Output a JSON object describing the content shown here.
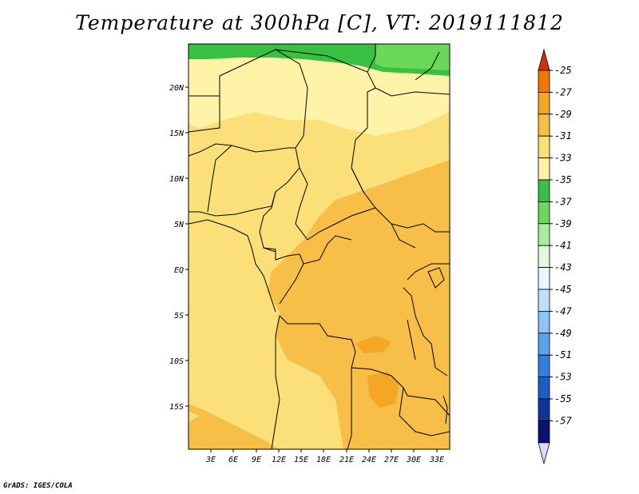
{
  "title": "Temperature at 300hPa [C], VT: 2019111812",
  "credit": "GrADS: IGES/COLA",
  "map": {
    "lat_labels": [
      "20N",
      "15N",
      "10N",
      "5N",
      "EQ",
      "5S",
      "10S",
      "15S"
    ],
    "lon_labels": [
      "3E",
      "6E",
      "9E",
      "12E",
      "15E",
      "18E",
      "21E",
      "24E",
      "27E",
      "30E",
      "33E"
    ]
  },
  "colorbar": {
    "labels": [
      "-25",
      "-27",
      "-29",
      "-31",
      "-33",
      "-35",
      "-37",
      "-39",
      "-41",
      "-43",
      "-45",
      "-47",
      "-49",
      "-51",
      "-53",
      "-55",
      "-57"
    ],
    "colors": [
      "#d73000",
      "#f07800",
      "#f5a623",
      "#f7be48",
      "#fbe07a",
      "#fff3a8",
      "#38c040",
      "#6ad858",
      "#a8eca0",
      "#e0fae0",
      "#e8f6ff",
      "#bfe0fa",
      "#8cc4f4",
      "#5aa2ea",
      "#3080dc",
      "#1c5ec4",
      "#10339c",
      "#0a1470",
      "#dcdcf8"
    ]
  }
}
